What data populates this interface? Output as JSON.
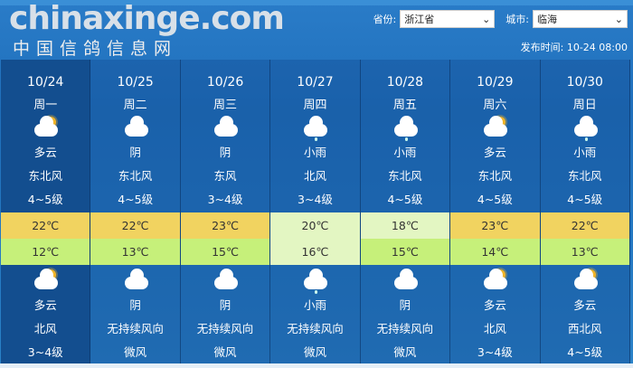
{
  "filters": {
    "province_label": "省份:",
    "province_value": "浙江省",
    "city_label": "城市:",
    "city_value": "临海"
  },
  "publish": "发布时间: 10-24 08:00",
  "colors": {
    "high_temp": "#f1d360",
    "low_temp": "#c6f07a",
    "pale": "#e3f6c2",
    "selected": "#134e8f"
  },
  "days": [
    {
      "date": "10/24",
      "weekday": "周一",
      "day_icon": "partly-cloudy",
      "day_weather": "多云",
      "day_wind": "东北风",
      "day_level": "4~5级",
      "high": "22℃",
      "low": "12℃",
      "night_icon": "partly-cloudy",
      "night_weather": "多云",
      "night_wind": "北风",
      "night_level": "3~4级"
    },
    {
      "date": "10/25",
      "weekday": "周二",
      "day_icon": "cloudy",
      "day_weather": "阴",
      "day_wind": "东北风",
      "day_level": "4~5级",
      "high": "22℃",
      "low": "13℃",
      "night_icon": "cloudy",
      "night_weather": "阴",
      "night_wind": "无持续风向",
      "night_level": "微风"
    },
    {
      "date": "10/26",
      "weekday": "周三",
      "day_icon": "cloudy",
      "day_weather": "阴",
      "day_wind": "东风",
      "day_level": "3~4级",
      "high": "23℃",
      "low": "15℃",
      "night_icon": "cloudy",
      "night_weather": "阴",
      "night_wind": "无持续风向",
      "night_level": "微风"
    },
    {
      "date": "10/27",
      "weekday": "周四",
      "day_icon": "light-rain",
      "day_weather": "小雨",
      "day_wind": "北风",
      "day_level": "3~4级",
      "high": "20℃",
      "low": "16℃",
      "night_icon": "light-rain",
      "night_weather": "小雨",
      "night_wind": "无持续风向",
      "night_level": "微风"
    },
    {
      "date": "10/28",
      "weekday": "周五",
      "day_icon": "light-rain",
      "day_weather": "小雨",
      "day_wind": "东北风",
      "day_level": "4~5级",
      "high": "18℃",
      "low": "15℃",
      "night_icon": "cloudy",
      "night_weather": "阴",
      "night_wind": "无持续风向",
      "night_level": "微风"
    },
    {
      "date": "10/29",
      "weekday": "周六",
      "day_icon": "partly-cloudy",
      "day_weather": "多云",
      "day_wind": "东北风",
      "day_level": "4~5级",
      "high": "23℃",
      "low": "14℃",
      "night_icon": "partly-cloudy",
      "night_weather": "多云",
      "night_wind": "北风",
      "night_level": "3~4级"
    },
    {
      "date": "10/30",
      "weekday": "周日",
      "day_icon": "light-rain",
      "day_weather": "小雨",
      "day_wind": "东北风",
      "day_level": "4~5级",
      "high": "22℃",
      "low": "13℃",
      "night_icon": "partly-cloudy",
      "night_weather": "多云",
      "night_wind": "西北风",
      "night_level": "4~5级"
    }
  ],
  "watermark": {
    "domain": "chinaxinge.com",
    "name": "中国信鸽信息网"
  }
}
